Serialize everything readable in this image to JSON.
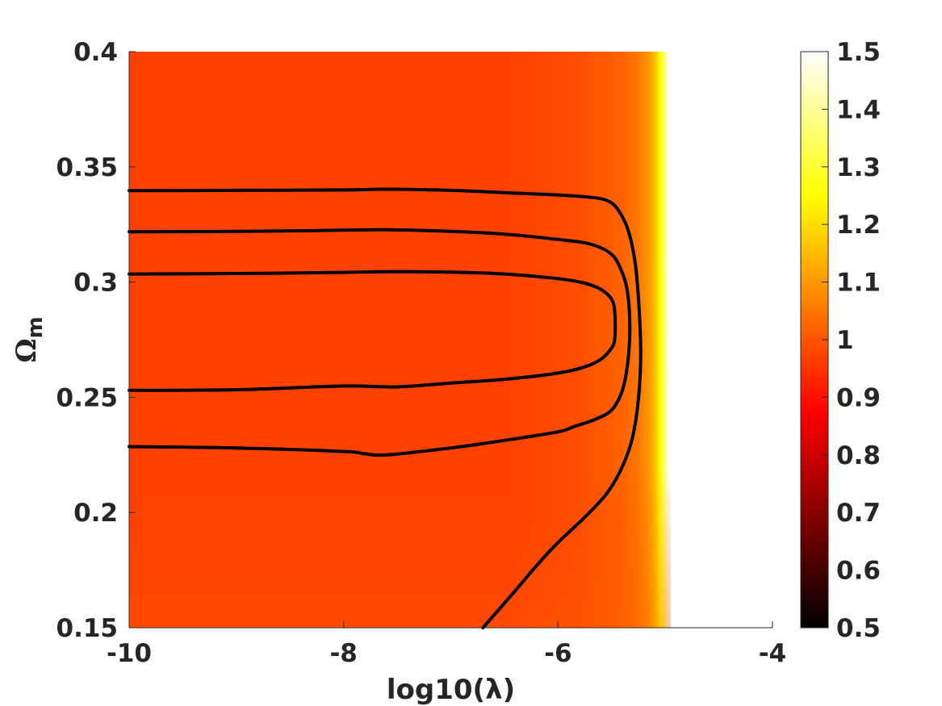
{
  "chart_data": {
    "type": "heatmap",
    "xlabel": "log10(λ)",
    "ylabel": "Ωm",
    "ylabel_main": "Ω",
    "ylabel_sub": "m",
    "xlim": [
      -10,
      -4
    ],
    "ylim": [
      0.15,
      0.4
    ],
    "x_ticks": [
      "-10",
      "-8",
      "-6",
      "-4"
    ],
    "x_tick_values": [
      -10,
      -8,
      -6,
      -4
    ],
    "y_ticks": [
      "0.15",
      "0.2",
      "0.25",
      "0.3",
      "0.35",
      "0.4"
    ],
    "y_tick_values": [
      0.15,
      0.2,
      0.25,
      0.3,
      0.35,
      0.4
    ],
    "colorbar": {
      "colormap": "hot",
      "range": [
        0.5,
        1.5
      ],
      "ticks": [
        "0.5",
        "0.6",
        "0.7",
        "0.8",
        "0.9",
        "1",
        "1.1",
        "1.2",
        "1.3",
        "1.4",
        "1.5"
      ],
      "tick_values": [
        0.5,
        0.6,
        0.7,
        0.8,
        0.9,
        1.0,
        1.1,
        1.2,
        1.3,
        1.4,
        1.5
      ]
    },
    "field": {
      "description_values": "approximate plotted value vs log10(λ): near-constant in the left region, rising sharply near log10(λ)≈-5",
      "profile_x": [
        -10,
        -6.5,
        -5.8,
        -5.4,
        -5.25,
        -5.15,
        -5.1,
        -5.06,
        -5.03,
        -5.0,
        -4.98,
        -4.96
      ],
      "profile_value": [
        0.97,
        0.97,
        0.99,
        1.02,
        1.05,
        1.1,
        1.15,
        1.22,
        1.3,
        1.38,
        1.45,
        1.5
      ],
      "valid_xmax": -4.95
    },
    "contours": [
      {
        "name": "inner",
        "x": [
          -10,
          -9,
          -8,
          -7.6,
          -7,
          -6.5,
          -6,
          -5.75,
          -5.6,
          -5.5,
          -5.47,
          -5.47,
          -5.5,
          -5.6,
          -5.75,
          -6,
          -6.5,
          -7,
          -7.5,
          -8,
          -9,
          -10
        ],
        "y": [
          0.3035,
          0.3037,
          0.3042,
          0.3045,
          0.3043,
          0.3035,
          0.3015,
          0.2995,
          0.2968,
          0.2925,
          0.2865,
          0.2758,
          0.2715,
          0.2665,
          0.2632,
          0.2605,
          0.2578,
          0.2562,
          0.2545,
          0.2549,
          0.2533,
          0.253
        ]
      },
      {
        "name": "middle",
        "x": [
          -10,
          -9,
          -8,
          -7.6,
          -7,
          -6.5,
          -6,
          -5.7,
          -5.5,
          -5.4,
          -5.35,
          -5.33,
          -5.35,
          -5.4,
          -5.5,
          -5.65,
          -5.85,
          -6,
          -6.5,
          -7,
          -7.6,
          -7.8,
          -8,
          -9,
          -10
        ],
        "y": [
          0.3218,
          0.322,
          0.3225,
          0.3227,
          0.322,
          0.3208,
          0.3185,
          0.3165,
          0.312,
          0.304,
          0.295,
          0.28,
          0.265,
          0.253,
          0.2445,
          0.2405,
          0.2373,
          0.235,
          0.2313,
          0.228,
          0.225,
          0.2255,
          0.2265,
          0.228,
          0.2286
        ]
      },
      {
        "name": "outer",
        "x": [
          -10,
          -9,
          -8,
          -7.6,
          -7,
          -6.5,
          -6,
          -5.7,
          -5.55,
          -5.45,
          -5.35,
          -5.28,
          -5.24,
          -5.23,
          -5.26,
          -5.32,
          -5.42,
          -5.55,
          -5.75,
          -6,
          -6.2,
          -6.4,
          -6.55,
          -6.7
        ],
        "y": [
          0.3397,
          0.3398,
          0.34,
          0.3403,
          0.3398,
          0.3388,
          0.3378,
          0.3368,
          0.3355,
          0.332,
          0.323,
          0.308,
          0.285,
          0.265,
          0.245,
          0.23,
          0.218,
          0.208,
          0.198,
          0.187,
          0.177,
          0.166,
          0.158,
          0.15
        ]
      }
    ]
  }
}
